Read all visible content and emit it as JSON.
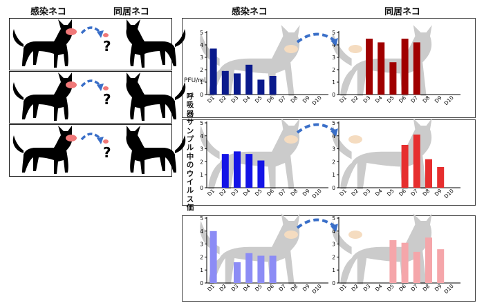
{
  "headers": {
    "left_infected": "感染ネコ",
    "left_cohabiting": "同居ネコ",
    "right_infected": "感染ネコ",
    "right_cohabiting": "同居ネコ"
  },
  "unit_label": "PFU/ml",
  "vertical_label": "呼吸器サンプル中のウイルス価",
  "colors": {
    "row1": "#0a1a8c",
    "row1_cohab": "#a00000",
    "row2": "#1414e6",
    "row2_cohab": "#e62e2e",
    "row3": "#8c8cf5",
    "row3_cohab": "#f5a6aa",
    "cat_silhouette": "#c8c8c8",
    "droplet": "#f5dcc0",
    "sneeze": "#f07878",
    "arrow": "#3a6fc8"
  },
  "icons": [
    "cat-icon",
    "sneeze-droplet-icon",
    "question-mark-icon",
    "curved-arrow-icon"
  ],
  "chart_data": [
    {
      "type": "bar",
      "name": "row1-infected",
      "categories": [
        "D1",
        "D2",
        "D3",
        "D4",
        "D5",
        "D6",
        "D7",
        "D8",
        "D9",
        "D10"
      ],
      "values": [
        3.7,
        1.9,
        1.7,
        2.4,
        1.2,
        1.5,
        null,
        null,
        null,
        null
      ],
      "ylim": [
        0,
        5
      ],
      "yticks": [
        0,
        1,
        2,
        3,
        4,
        5
      ],
      "xlabel": "",
      "ylabel": "PFU/ml",
      "grid": false
    },
    {
      "type": "bar",
      "name": "row1-cohabiting",
      "categories": [
        "D1",
        "D2",
        "D3",
        "D4",
        "D5",
        "D6",
        "D7",
        "D8",
        "D9",
        "D10"
      ],
      "values": [
        null,
        null,
        4.5,
        4.2,
        2.6,
        4.5,
        4.2,
        null,
        null,
        null
      ],
      "ylim": [
        0,
        5
      ],
      "yticks": [
        0,
        1,
        2,
        3,
        4,
        5
      ],
      "xlabel": "",
      "ylabel": "",
      "grid": false
    },
    {
      "type": "bar",
      "name": "row2-infected",
      "categories": [
        "D1",
        "D2",
        "D3",
        "D4",
        "D5",
        "D6",
        "D7",
        "D8",
        "D9",
        "D10"
      ],
      "values": [
        null,
        2.6,
        2.8,
        2.6,
        2.1,
        null,
        null,
        null,
        null,
        null
      ],
      "ylim": [
        0,
        5
      ],
      "yticks": [
        0,
        1,
        2,
        3,
        4,
        5
      ],
      "xlabel": "",
      "ylabel": "",
      "grid": false
    },
    {
      "type": "bar",
      "name": "row2-cohabiting",
      "categories": [
        "D1",
        "D2",
        "D3",
        "D4",
        "D5",
        "D6",
        "D7",
        "D8",
        "D9",
        "D10"
      ],
      "values": [
        null,
        null,
        null,
        null,
        null,
        3.3,
        4.1,
        2.2,
        1.6,
        null
      ],
      "ylim": [
        0,
        5
      ],
      "yticks": [
        0,
        1,
        2,
        3,
        4,
        5
      ],
      "xlabel": "",
      "ylabel": "",
      "grid": false
    },
    {
      "type": "bar",
      "name": "row3-infected",
      "categories": [
        "D1",
        "D2",
        "D3",
        "D4",
        "D5",
        "D6",
        "D7",
        "D8",
        "D9",
        "D10"
      ],
      "values": [
        4.0,
        null,
        1.6,
        2.3,
        2.1,
        2.1,
        null,
        null,
        null,
        null
      ],
      "ylim": [
        0,
        5
      ],
      "yticks": [
        0,
        1,
        2,
        3,
        4,
        5
      ],
      "xlabel": "",
      "ylabel": "",
      "grid": false
    },
    {
      "type": "bar",
      "name": "row3-cohabiting",
      "categories": [
        "D1",
        "D2",
        "D3",
        "D4",
        "D5",
        "D6",
        "D7",
        "D8",
        "D9",
        "D10"
      ],
      "values": [
        null,
        null,
        null,
        null,
        3.3,
        3.1,
        2.4,
        3.5,
        2.6,
        null
      ],
      "ylim": [
        0,
        5
      ],
      "yticks": [
        0,
        1,
        2,
        3,
        4,
        5
      ],
      "xlabel": "",
      "ylabel": "",
      "grid": false
    }
  ]
}
